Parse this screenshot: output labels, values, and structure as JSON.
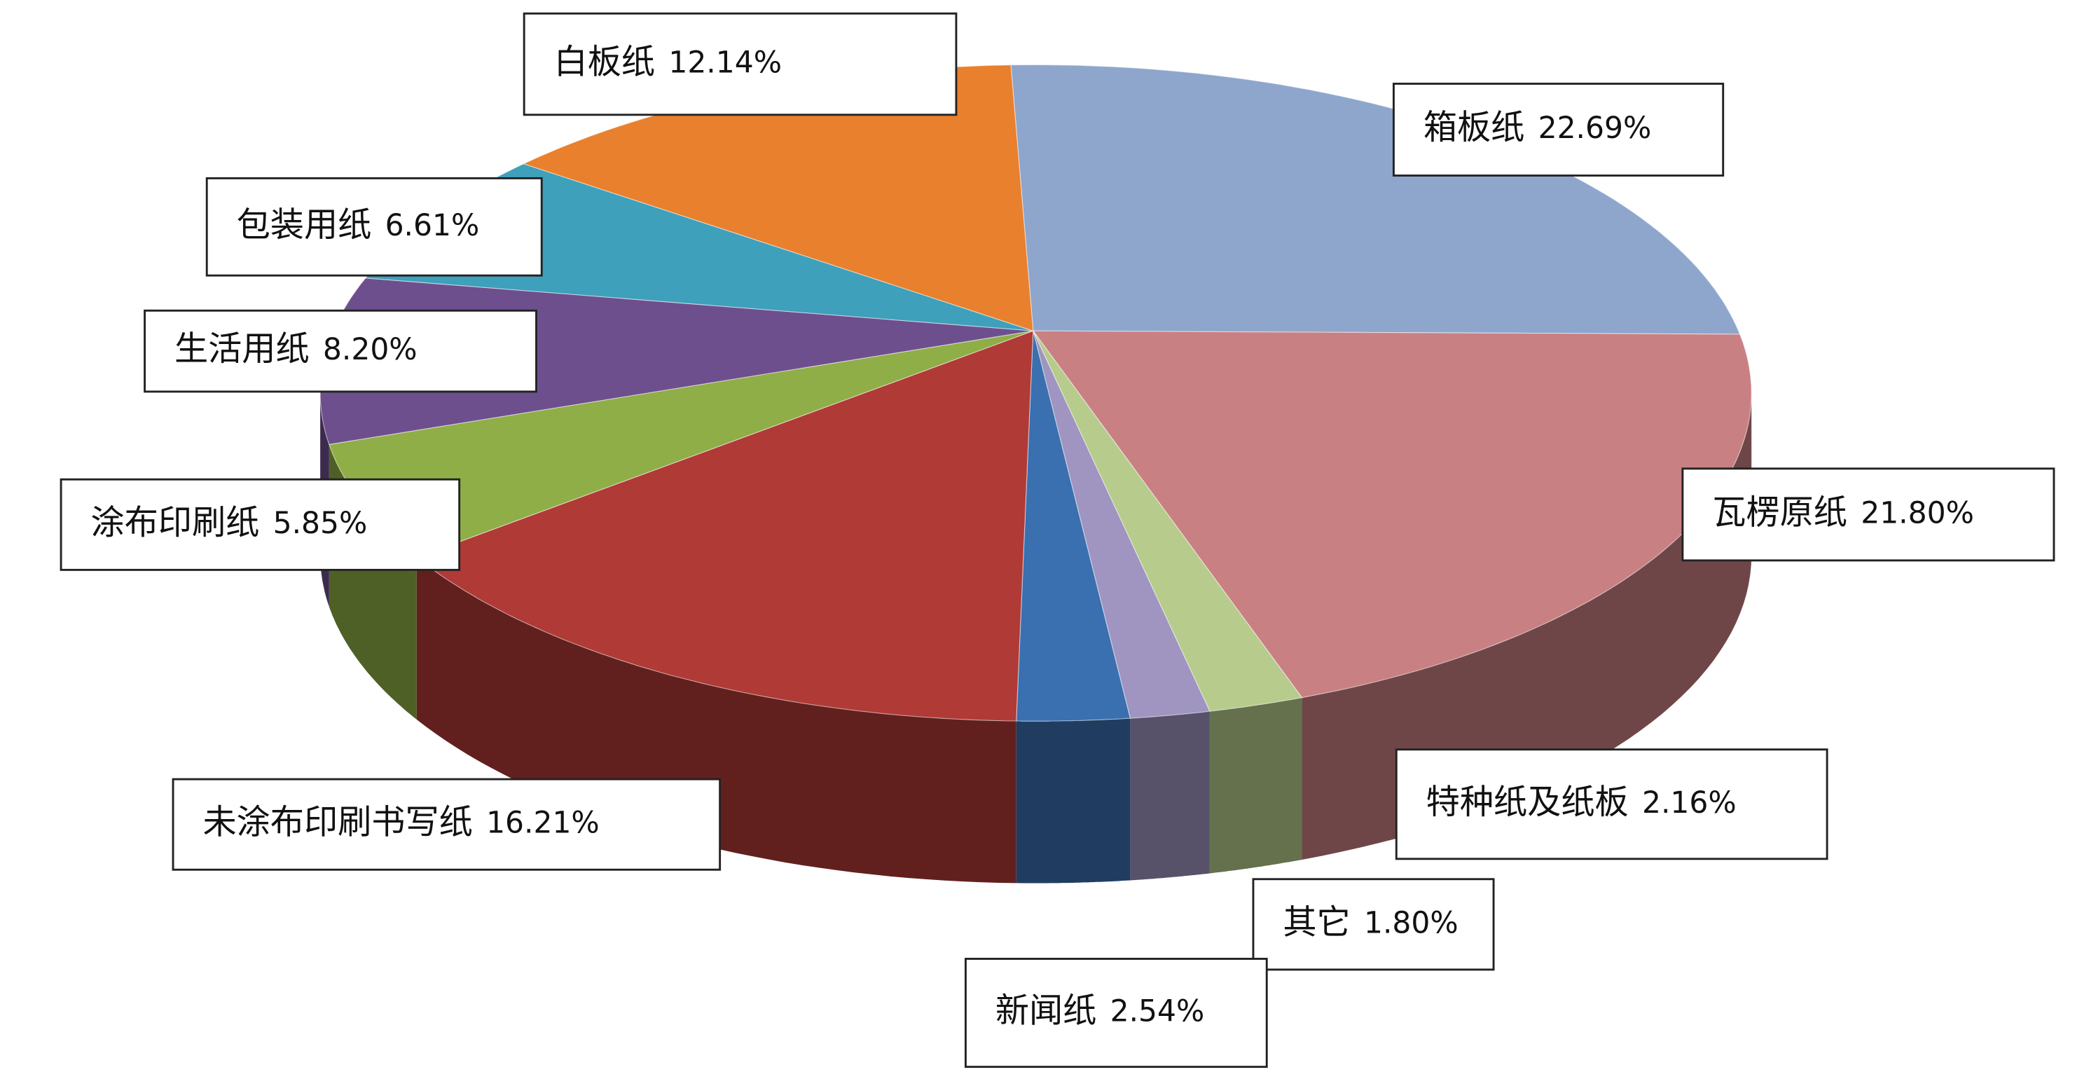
{
  "chart_data": {
    "type": "pie3d",
    "categories": [
      "箱板纸",
      "瓦楞原纸",
      "特种纸及纸板",
      "其它",
      "新闻纸",
      "未涂布印刷书写纸",
      "涂布印刷纸",
      "生活用纸",
      "包装用纸",
      "白板纸"
    ],
    "values": [
      22.69,
      21.8,
      2.16,
      1.8,
      2.54,
      16.21,
      5.85,
      8.2,
      6.61,
      12.14
    ],
    "value_labels": [
      "22.69%",
      "21.80%",
      "2.16%",
      "1.80%",
      "2.54%",
      "16.21%",
      "5.85%",
      "8.20%",
      "6.61%",
      "12.14%"
    ],
    "colors": [
      "#8ea6cc",
      "#c98083",
      "#b7cc8c",
      "#9f95c0",
      "#3a6fb0",
      "#b03a36",
      "#8fae47",
      "#6e4f8e",
      "#3ea0ba",
      "#e8802e"
    ]
  }
}
